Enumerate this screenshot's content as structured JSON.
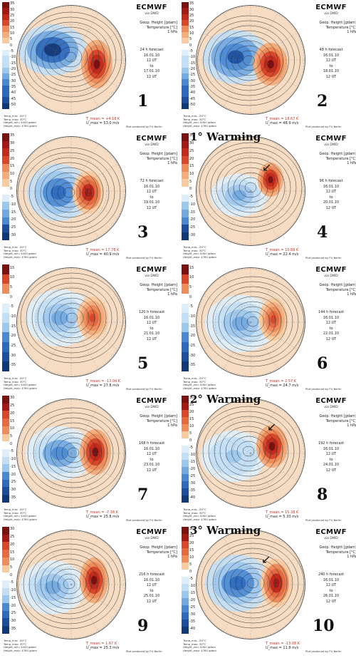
{
  "header": {
    "model": "ECMWF",
    "via": "via DWD"
  },
  "vars": [
    "Geop. Height [gdam]",
    "Temperature [°C]",
    "1 hPa"
  ],
  "panels": [
    {
      "num": "1",
      "forecast": "24 h forecast",
      "init": "16.01.10",
      "init_time": "12 UT",
      "to": "to",
      "valid": "17.01.10",
      "valid_time": "12 UT",
      "tmean": "T_mean = +4.18 K",
      "wind": "U_max = 53.0 m/s",
      "warming": "",
      "cbar": [
        "35",
        "30",
        "25",
        "20",
        "15",
        "10",
        "5",
        "0",
        "-5",
        "-10",
        "-15",
        "-20",
        "-25",
        "-30",
        "-35",
        "-40",
        "-45",
        "-50"
      ]
    },
    {
      "num": "2",
      "forecast": "48 h forecast",
      "init": "16.01.10",
      "init_time": "12 UT",
      "to": "to",
      "valid": "18.01.10",
      "valid_time": "12 UT",
      "tmean": "T_mean = 18.67 K",
      "wind": "U_max = 48.9 m/s",
      "warming": "",
      "cbar": [
        "35",
        "30",
        "25",
        "20",
        "15",
        "10",
        "5",
        "0",
        "-5",
        "-10",
        "-15",
        "-20",
        "-25",
        "-30",
        "-35",
        "-40",
        "-45",
        "-50"
      ]
    },
    {
      "num": "3",
      "forecast": "72 h forecast",
      "init": "16.01.10",
      "init_time": "12 UT",
      "to": "to",
      "valid": "19.01.10",
      "valid_time": "12 UT",
      "tmean": "T_mean = 17.78 K",
      "wind": "U_max = 40.9 m/s",
      "warming": "",
      "cbar": [
        "35",
        "30",
        "25",
        "20",
        "15",
        "10",
        "5",
        "0",
        "-5",
        "-10",
        "-15",
        "-20",
        "-25",
        "-30"
      ]
    },
    {
      "num": "4",
      "forecast": "96 h forecast",
      "init": "16.01.10",
      "init_time": "12 UT",
      "to": "to",
      "valid": "20.01.10",
      "valid_time": "12 UT",
      "tmean": "T_mean = 10.88 K",
      "wind": "U_max = 22.4 m/s",
      "warming": "1° Warming",
      "cbar": [
        "35",
        "30",
        "25",
        "20",
        "15",
        "10",
        "5",
        "0",
        "-5",
        "-10",
        "-15",
        "-20",
        "-25",
        "-30"
      ]
    },
    {
      "num": "5",
      "forecast": "120 h forecast",
      "init": "16.01.10",
      "init_time": "12 UT",
      "to": "to",
      "valid": "21.01.10",
      "valid_time": "12 UT",
      "tmean": "T_mean = -13.04 K",
      "wind": "U_max = 27.8 m/s",
      "warming": "",
      "cbar": [
        "15",
        "10",
        "5",
        "0",
        "-5",
        "-10",
        "-15",
        "-20",
        "-25",
        "-30",
        "-35"
      ]
    },
    {
      "num": "6",
      "forecast": "144 h forecast",
      "init": "16.01.10",
      "init_time": "12 UT",
      "to": "to",
      "valid": "22.01.10",
      "valid_time": "12 UT",
      "tmean": "T_mean = 2.57 K",
      "wind": "U_max = 24.7 m/s",
      "warming": "",
      "cbar": [
        "15",
        "10",
        "5",
        "0",
        "-5",
        "-10",
        "-15",
        "-20",
        "-25",
        "-30",
        "-35"
      ]
    },
    {
      "num": "7",
      "forecast": "168 h forecast",
      "init": "16.01.10",
      "init_time": "12 UT",
      "to": "to",
      "valid": "23.01.10",
      "valid_time": "12 UT",
      "tmean": "T_mean = -7.38 K",
      "wind": "U_max = 25.8 m/s",
      "warming": "",
      "cbar": [
        "30",
        "25",
        "20",
        "15",
        "10",
        "5",
        "0",
        "-5",
        "-10",
        "-15",
        "-20",
        "-25",
        "-30",
        "-35"
      ]
    },
    {
      "num": "8",
      "forecast": "192 h forecast",
      "init": "16.01.10",
      "init_time": "12 UT",
      "to": "to",
      "valid": "24.01.10",
      "valid_time": "12 UT",
      "tmean": "T_mean = 15.38 K",
      "wind": "U_max = 5.33 m/s",
      "warming": "2° Warming",
      "cbar": [
        "30",
        "25",
        "20",
        "15",
        "10",
        "5",
        "0",
        "-5",
        "-10",
        "-15",
        "-20",
        "-25",
        "-30",
        "-35",
        "-40"
      ]
    },
    {
      "num": "9",
      "forecast": "216 h forecast",
      "init": "16.01.10",
      "init_time": "12 UT",
      "to": "to",
      "valid": "25.01.10",
      "valid_time": "12 UT",
      "tmean": "T_mean = 1.67 K",
      "wind": "U_max = 25.3 m/s",
      "warming": "",
      "cbar": [
        "30",
        "25",
        "20",
        "15",
        "10",
        "5",
        "0",
        "-5",
        "-10",
        "-15",
        "-20",
        "-25",
        "-30",
        "-35"
      ]
    },
    {
      "num": "10",
      "forecast": "240 h forecast",
      "init": "16.01.10",
      "init_time": "12 UT",
      "to": "to",
      "valid": "26.01.10",
      "valid_time": "12 UT",
      "tmean": "T_mean = -13.08 K",
      "wind": "U_max = 11.8 m/s",
      "warming": "3° Warming",
      "cbar": [
        "30",
        "25",
        "20",
        "15",
        "10",
        "5",
        "0",
        "-5",
        "-10",
        "-15",
        "-20",
        "-25",
        "-30",
        "-35",
        "-40"
      ]
    }
  ],
  "footer": [
    "Temp_min: -50°C",
    "Temp_max: 30°C",
    "Height_min: 4400 gdam",
    "Height_max: 4760 gdam"
  ],
  "produced": "Plot produced by FU Berlin",
  "colors": {
    "warm": "#c0392b",
    "cold": "#2f6fbf",
    "neutral": "#f6e7d6"
  }
}
